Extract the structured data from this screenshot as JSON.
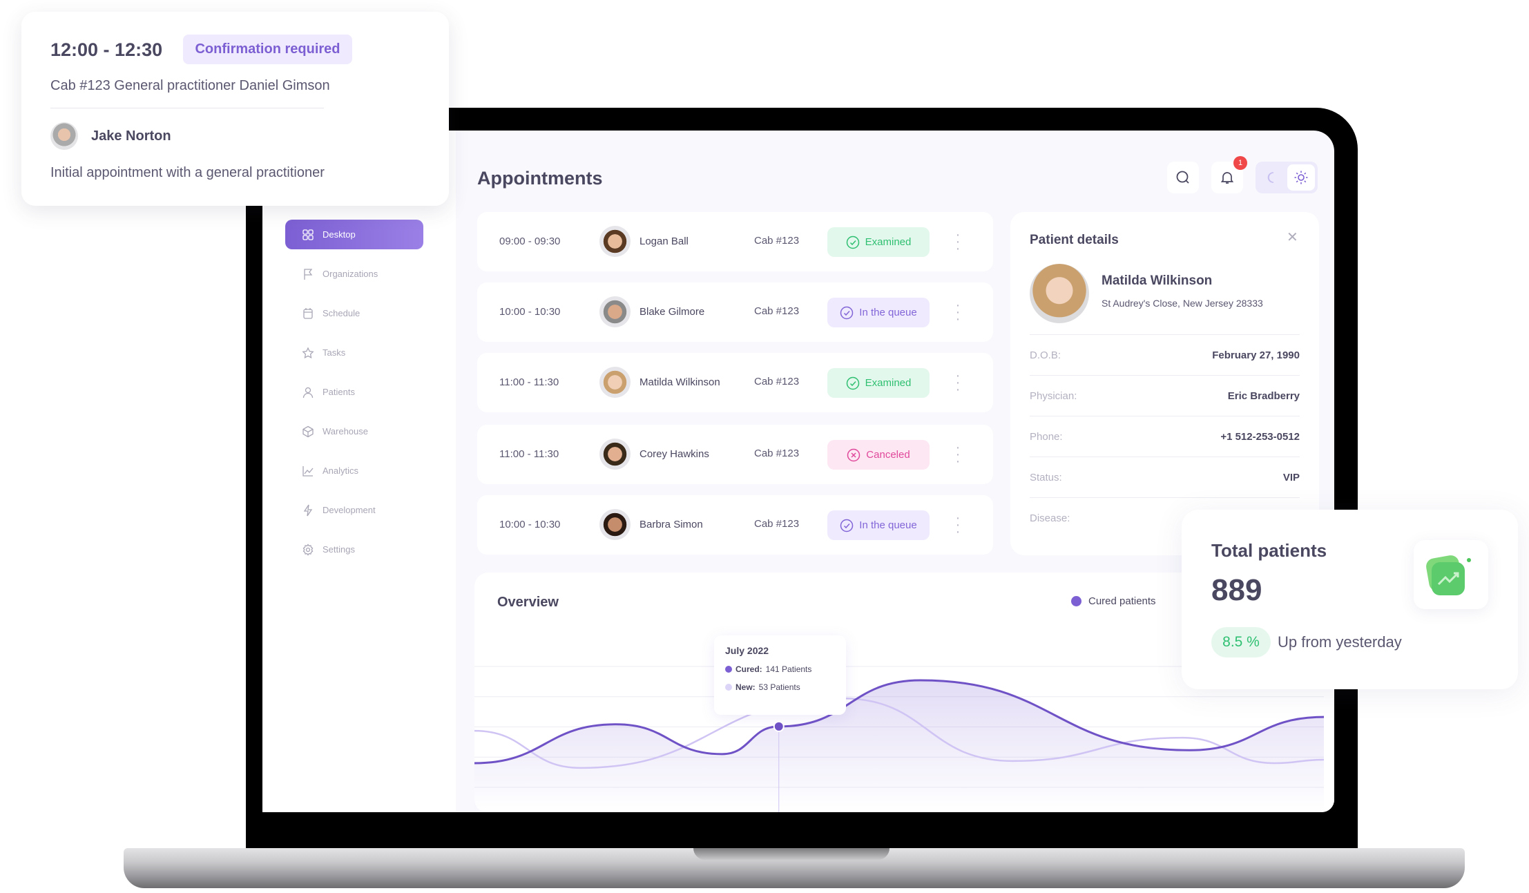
{
  "popup": {
    "time": "12:00 - 12:30",
    "badge": "Confirmation required",
    "details": "Cab #123  General practitioner Daniel Gimson",
    "patient": "Jake Norton",
    "note": "Initial appointment with a general practitioner"
  },
  "sidebar": {
    "items": [
      {
        "label": "Desktop",
        "icon": "grid-icon"
      },
      {
        "label": "Organizations",
        "icon": "flag-icon"
      },
      {
        "label": "Schedule",
        "icon": "calendar-icon"
      },
      {
        "label": "Tasks",
        "icon": "star-icon"
      },
      {
        "label": "Patients",
        "icon": "user-icon"
      },
      {
        "label": "Warehouse",
        "icon": "box-icon"
      },
      {
        "label": "Analytics",
        "icon": "chart-icon"
      },
      {
        "label": "Development",
        "icon": "bolt-icon"
      },
      {
        "label": "Settings",
        "icon": "gear-icon"
      }
    ]
  },
  "header": {
    "title": "Appointments",
    "notification_count": "1"
  },
  "appointments": [
    {
      "time": "09:00 - 09:30",
      "name": "Logan Ball",
      "cab": "Cab #123",
      "status": "Examined",
      "kind": "ex"
    },
    {
      "time": "10:00 - 10:30",
      "name": "Blake Gilmore",
      "cab": "Cab #123",
      "status": "In the queue",
      "kind": "q"
    },
    {
      "time": "11:00 - 11:30",
      "name": "Matilda Wilkinson",
      "cab": "Cab #123",
      "status": "Examined",
      "kind": "ex"
    },
    {
      "time": "11:00 - 11:30",
      "name": "Corey Hawkins",
      "cab": "Cab #123",
      "status": "Canceled",
      "kind": "c"
    },
    {
      "time": "10:00 - 10:30",
      "name": "Barbra Simon",
      "cab": "Cab #123",
      "status": "In the queue",
      "kind": "q"
    }
  ],
  "patient_details": {
    "title": "Patient details",
    "name": "Matilda Wilkinson",
    "address": "St Audrey's Close, New Jersey 28333",
    "fields": [
      {
        "k": "D.O.B:",
        "v": "February 27, 1990"
      },
      {
        "k": "Physician:",
        "v": "Eric Bradberry"
      },
      {
        "k": "Phone:",
        "v": "+1 512-253-0512"
      },
      {
        "k": "Status:",
        "v": "VIP"
      },
      {
        "k": "Disease:",
        "v": ""
      }
    ]
  },
  "total": {
    "title": "Total patients",
    "value": "889",
    "change": "8.5 %",
    "caption": "Up from yesterday"
  },
  "colors": {
    "accent": "#7c5fd3",
    "accent_light": "#d9d0f7",
    "examined": "#2fbf71",
    "queue": "#8266d8",
    "canceled": "#e0489c",
    "notification": "#f04848"
  },
  "chart_data": {
    "type": "area",
    "title": "Overview",
    "legend": [
      "Cured patients"
    ],
    "legend_position": "top-right",
    "grid": true,
    "ylim": [
      0,
      280
    ],
    "xlim": [
      0,
      12
    ],
    "series": [
      {
        "name": "Cured",
        "x": [
          0,
          2,
          3.5,
          4.3,
          6.3,
          10.1,
          12
        ],
        "values": [
          56,
          146,
          77,
          141,
          248,
          86,
          163
        ],
        "color": "#6f52c6"
      },
      {
        "name": "New",
        "x": [
          0,
          1.5,
          5.2,
          7.6,
          10,
          11.3,
          12
        ],
        "values": [
          131,
          45,
          206,
          61,
          115,
          56,
          64
        ],
        "color": "#cfc4f3"
      }
    ],
    "tooltip": {
      "title": "July 2022",
      "lines": [
        {
          "label": "Cured:",
          "value": "141 Patients"
        },
        {
          "label": "New:",
          "value": "53 Patients"
        }
      ],
      "x": 4.3,
      "y": 141
    }
  }
}
